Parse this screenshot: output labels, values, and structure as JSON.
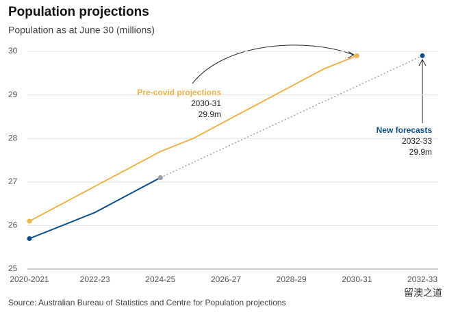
{
  "chart_data": {
    "type": "line",
    "title": "Population projections",
    "subtitle": "Population as at June 30 (millions)",
    "source": "Source: Australian Bureau of Statistics and Centre for Population projections",
    "watermark": "留澳之道",
    "categories": [
      "2020-2021",
      null,
      "2022-23",
      null,
      "2024-25",
      null,
      "2026-27",
      null,
      "2028-29",
      null,
      "2030-31",
      null,
      "2032-33"
    ],
    "series": [
      {
        "name": "Pre-covid projections",
        "color": "#f0b44c",
        "values": [
          26.1,
          26.5,
          26.9,
          27.3,
          27.7,
          28.0,
          28.4,
          28.8,
          29.2,
          29.6,
          29.9,
          null,
          null
        ]
      },
      {
        "name": "New forecasts",
        "color": "#0b4f8c",
        "values": [
          25.7,
          26.0,
          26.3,
          26.7,
          27.1,
          null,
          null,
          null,
          null,
          null,
          null,
          null,
          null
        ]
      },
      {
        "color": "#a0a0a0",
        "style": "dotted",
        "end_color": "#0b4f8c",
        "values": [
          null,
          null,
          null,
          null,
          27.1,
          27.45,
          27.8,
          28.15,
          28.5,
          28.85,
          29.2,
          29.55,
          29.9
        ]
      }
    ],
    "annotations": [
      {
        "lines": [
          "2030-31",
          "29.9m"
        ]
      },
      {
        "lines": [
          "2032-33",
          "29.9m"
        ]
      }
    ],
    "ylim": [
      25,
      30
    ],
    "yticks": [
      25,
      26,
      27,
      28,
      29,
      30
    ],
    "grid": true
  }
}
